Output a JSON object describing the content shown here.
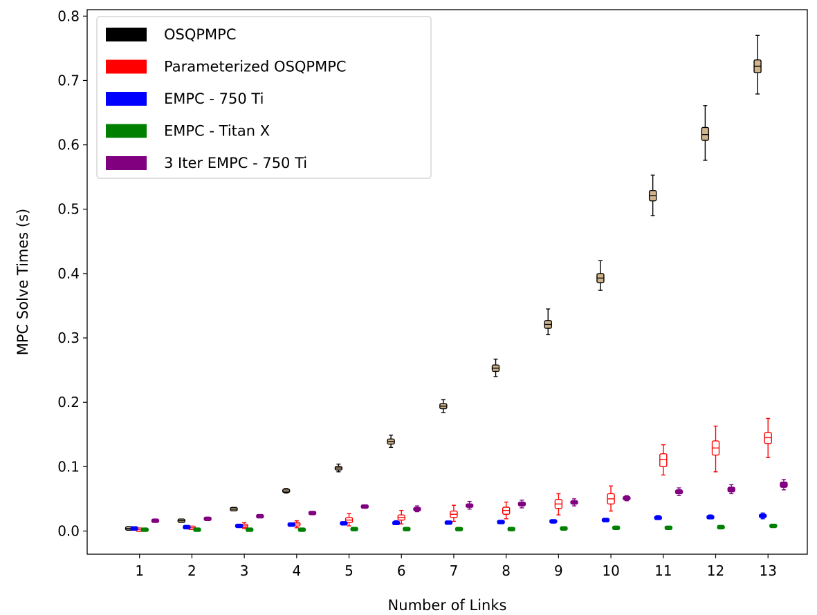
{
  "chart_data": {
    "type": "box",
    "title": "",
    "xlabel": "Number of Links",
    "ylabel": "MPC Solve Times (s)",
    "x_ticks": [
      "1",
      "2",
      "3",
      "4",
      "5",
      "6",
      "7",
      "8",
      "9",
      "10",
      "11",
      "12",
      "13"
    ],
    "y_ticks": [
      "0.0",
      "0.1",
      "0.2",
      "0.3",
      "0.4",
      "0.5",
      "0.6",
      "0.7",
      "0.8"
    ],
    "xlim": [
      0,
      13.75
    ],
    "ylim": [
      -0.036,
      0.81
    ],
    "legend_position": "top-left",
    "series": [
      {
        "name": "OSQPMPC",
        "color": "#000000",
        "face": "#d2b48c",
        "offset": -0.2,
        "boxes": [
          {
            "med": 0.004,
            "q1": 0.0035,
            "q3": 0.0045,
            "wlo": 0.003,
            "whi": 0.005
          },
          {
            "med": 0.016,
            "q1": 0.015,
            "q3": 0.017,
            "wlo": 0.014,
            "whi": 0.018
          },
          {
            "med": 0.034,
            "q1": 0.033,
            "q3": 0.035,
            "wlo": 0.032,
            "whi": 0.036
          },
          {
            "med": 0.062,
            "q1": 0.061,
            "q3": 0.064,
            "wlo": 0.059,
            "whi": 0.066
          },
          {
            "med": 0.098,
            "q1": 0.095,
            "q3": 0.1,
            "wlo": 0.092,
            "whi": 0.104
          },
          {
            "med": 0.139,
            "q1": 0.135,
            "q3": 0.143,
            "wlo": 0.13,
            "whi": 0.149
          },
          {
            "med": 0.194,
            "q1": 0.19,
            "q3": 0.198,
            "wlo": 0.184,
            "whi": 0.204
          },
          {
            "med": 0.253,
            "q1": 0.248,
            "q3": 0.258,
            "wlo": 0.24,
            "whi": 0.267
          },
          {
            "med": 0.321,
            "q1": 0.315,
            "q3": 0.327,
            "wlo": 0.305,
            "whi": 0.345
          },
          {
            "med": 0.393,
            "q1": 0.386,
            "q3": 0.4,
            "wlo": 0.374,
            "whi": 0.42
          },
          {
            "med": 0.521,
            "q1": 0.513,
            "q3": 0.529,
            "wlo": 0.49,
            "whi": 0.553
          },
          {
            "med": 0.616,
            "q1": 0.607,
            "q3": 0.627,
            "wlo": 0.576,
            "whi": 0.661
          },
          {
            "med": 0.722,
            "q1": 0.712,
            "q3": 0.732,
            "wlo": 0.679,
            "whi": 0.77
          }
        ]
      },
      {
        "name": "Parameterized OSQPMPC",
        "color": "#ff0000",
        "face": "#ffffff",
        "offset": 0.0,
        "boxes": [
          {
            "med": 0.002,
            "q1": 0.0015,
            "q3": 0.0025,
            "wlo": 0.001,
            "whi": 0.003
          },
          {
            "med": 0.005,
            "q1": 0.004,
            "q3": 0.006,
            "wlo": 0.003,
            "whi": 0.007
          },
          {
            "med": 0.008,
            "q1": 0.006,
            "q3": 0.01,
            "wlo": 0.004,
            "whi": 0.013
          },
          {
            "med": 0.011,
            "q1": 0.008,
            "q3": 0.013,
            "wlo": 0.005,
            "whi": 0.016
          },
          {
            "med": 0.017,
            "q1": 0.013,
            "q3": 0.021,
            "wlo": 0.008,
            "whi": 0.027
          },
          {
            "med": 0.021,
            "q1": 0.017,
            "q3": 0.025,
            "wlo": 0.011,
            "whi": 0.032
          },
          {
            "med": 0.026,
            "q1": 0.021,
            "q3": 0.031,
            "wlo": 0.015,
            "whi": 0.04
          },
          {
            "med": 0.032,
            "q1": 0.026,
            "q3": 0.037,
            "wlo": 0.019,
            "whi": 0.045
          },
          {
            "med": 0.042,
            "q1": 0.035,
            "q3": 0.049,
            "wlo": 0.025,
            "whi": 0.058
          },
          {
            "med": 0.05,
            "q1": 0.042,
            "q3": 0.058,
            "wlo": 0.031,
            "whi": 0.07
          },
          {
            "med": 0.111,
            "q1": 0.1,
            "q3": 0.12,
            "wlo": 0.087,
            "whi": 0.134
          },
          {
            "med": 0.129,
            "q1": 0.118,
            "q3": 0.14,
            "wlo": 0.092,
            "whi": 0.163
          },
          {
            "med": 0.145,
            "q1": 0.136,
            "q3": 0.153,
            "wlo": 0.114,
            "whi": 0.175
          }
        ]
      },
      {
        "name": "EMPC - 750 Ti",
        "color": "#0000ff",
        "face": "#0000ff",
        "offset": -0.1,
        "boxes": [
          {
            "med": 0.004,
            "q1": 0.0035,
            "q3": 0.0045,
            "wlo": 0.003,
            "whi": 0.005
          },
          {
            "med": 0.006,
            "q1": 0.0055,
            "q3": 0.0065,
            "wlo": 0.005,
            "whi": 0.007
          },
          {
            "med": 0.008,
            "q1": 0.007,
            "q3": 0.009,
            "wlo": 0.006,
            "whi": 0.01
          },
          {
            "med": 0.01,
            "q1": 0.009,
            "q3": 0.011,
            "wlo": 0.008,
            "whi": 0.012
          },
          {
            "med": 0.012,
            "q1": 0.011,
            "q3": 0.013,
            "wlo": 0.01,
            "whi": 0.014
          },
          {
            "med": 0.012,
            "q1": 0.011,
            "q3": 0.014,
            "wlo": 0.01,
            "whi": 0.016
          },
          {
            "med": 0.013,
            "q1": 0.012,
            "q3": 0.014,
            "wlo": 0.011,
            "whi": 0.015
          },
          {
            "med": 0.014,
            "q1": 0.013,
            "q3": 0.015,
            "wlo": 0.012,
            "whi": 0.016
          },
          {
            "med": 0.015,
            "q1": 0.014,
            "q3": 0.016,
            "wlo": 0.013,
            "whi": 0.017
          },
          {
            "med": 0.017,
            "q1": 0.016,
            "q3": 0.018,
            "wlo": 0.015,
            "whi": 0.019
          },
          {
            "med": 0.021,
            "q1": 0.019,
            "q3": 0.022,
            "wlo": 0.018,
            "whi": 0.024
          },
          {
            "med": 0.022,
            "q1": 0.02,
            "q3": 0.023,
            "wlo": 0.019,
            "whi": 0.025
          },
          {
            "med": 0.024,
            "q1": 0.021,
            "q3": 0.026,
            "wlo": 0.019,
            "whi": 0.028
          }
        ]
      },
      {
        "name": "EMPC - Titan X",
        "color": "#008000",
        "face": "#008000",
        "offset": 0.1,
        "boxes": [
          {
            "med": 0.002,
            "q1": 0.0018,
            "q3": 0.0022,
            "wlo": 0.0015,
            "whi": 0.0025
          },
          {
            "med": 0.002,
            "q1": 0.0018,
            "q3": 0.0022,
            "wlo": 0.0015,
            "whi": 0.0025
          },
          {
            "med": 0.002,
            "q1": 0.0018,
            "q3": 0.0022,
            "wlo": 0.0015,
            "whi": 0.0025
          },
          {
            "med": 0.002,
            "q1": 0.0018,
            "q3": 0.0022,
            "wlo": 0.0015,
            "whi": 0.0025
          },
          {
            "med": 0.003,
            "q1": 0.0028,
            "q3": 0.0032,
            "wlo": 0.0025,
            "whi": 0.0035
          },
          {
            "med": 0.003,
            "q1": 0.0028,
            "q3": 0.0032,
            "wlo": 0.0025,
            "whi": 0.0035
          },
          {
            "med": 0.003,
            "q1": 0.0028,
            "q3": 0.0032,
            "wlo": 0.0025,
            "whi": 0.0035
          },
          {
            "med": 0.003,
            "q1": 0.0028,
            "q3": 0.0032,
            "wlo": 0.0025,
            "whi": 0.0035
          },
          {
            "med": 0.004,
            "q1": 0.0038,
            "q3": 0.0042,
            "wlo": 0.0035,
            "whi": 0.0045
          },
          {
            "med": 0.005,
            "q1": 0.0048,
            "q3": 0.0052,
            "wlo": 0.0045,
            "whi": 0.0055
          },
          {
            "med": 0.005,
            "q1": 0.0048,
            "q3": 0.0052,
            "wlo": 0.0045,
            "whi": 0.0055
          },
          {
            "med": 0.006,
            "q1": 0.0058,
            "q3": 0.0062,
            "wlo": 0.0055,
            "whi": 0.0065
          },
          {
            "med": 0.008,
            "q1": 0.0078,
            "q3": 0.0082,
            "wlo": 0.0075,
            "whi": 0.0085
          }
        ]
      },
      {
        "name": "3 Iter EMPC - 750 Ti",
        "color": "#800080",
        "face": "#800080",
        "offset": 0.3,
        "boxes": [
          {
            "med": 0.016,
            "q1": 0.015,
            "q3": 0.017,
            "wlo": 0.014,
            "whi": 0.018
          },
          {
            "med": 0.019,
            "q1": 0.018,
            "q3": 0.02,
            "wlo": 0.017,
            "whi": 0.021
          },
          {
            "med": 0.023,
            "q1": 0.022,
            "q3": 0.024,
            "wlo": 0.021,
            "whi": 0.025
          },
          {
            "med": 0.028,
            "q1": 0.027,
            "q3": 0.029,
            "wlo": 0.026,
            "whi": 0.03
          },
          {
            "med": 0.038,
            "q1": 0.037,
            "q3": 0.039,
            "wlo": 0.036,
            "whi": 0.04
          },
          {
            "med": 0.034,
            "q1": 0.032,
            "q3": 0.036,
            "wlo": 0.03,
            "whi": 0.039
          },
          {
            "med": 0.04,
            "q1": 0.037,
            "q3": 0.042,
            "wlo": 0.034,
            "whi": 0.046
          },
          {
            "med": 0.042,
            "q1": 0.039,
            "q3": 0.045,
            "wlo": 0.036,
            "whi": 0.048
          },
          {
            "med": 0.045,
            "q1": 0.042,
            "q3": 0.047,
            "wlo": 0.039,
            "whi": 0.05
          },
          {
            "med": 0.051,
            "q1": 0.049,
            "q3": 0.053,
            "wlo": 0.047,
            "whi": 0.055
          },
          {
            "med": 0.061,
            "q1": 0.058,
            "q3": 0.064,
            "wlo": 0.055,
            "whi": 0.067
          },
          {
            "med": 0.065,
            "q1": 0.061,
            "q3": 0.068,
            "wlo": 0.058,
            "whi": 0.072
          },
          {
            "med": 0.072,
            "q1": 0.068,
            "q3": 0.076,
            "wlo": 0.064,
            "whi": 0.08
          }
        ]
      }
    ]
  }
}
